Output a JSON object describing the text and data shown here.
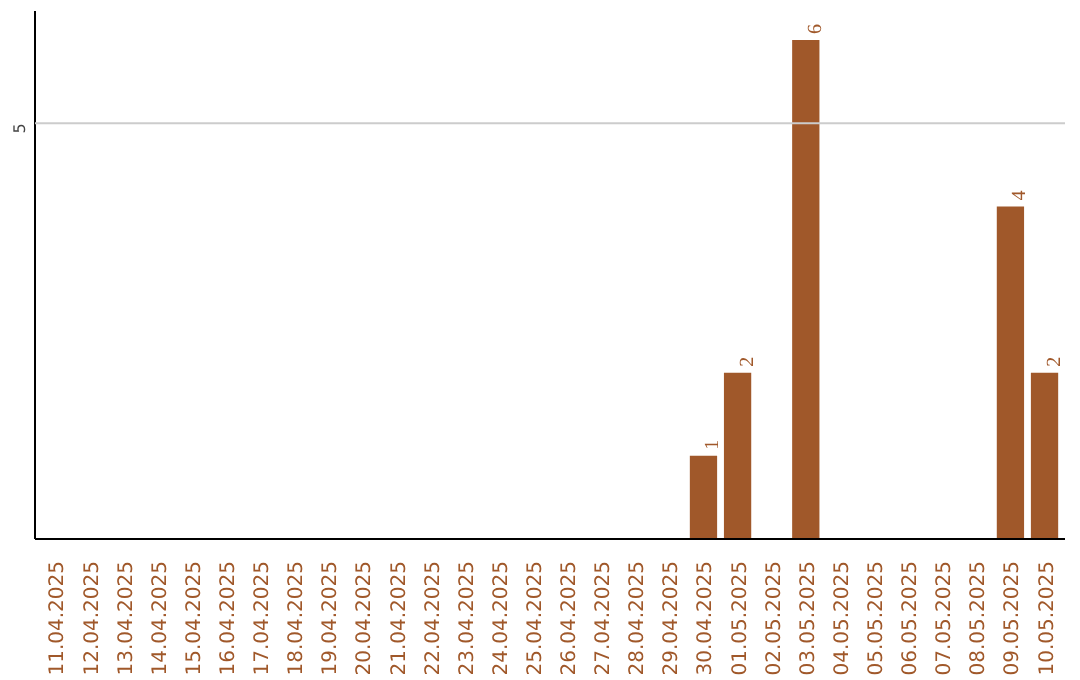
{
  "chart_data": {
    "type": "bar",
    "categories": [
      "11.04.2025",
      "12.04.2025",
      "13.04.2025",
      "14.04.2025",
      "15.04.2025",
      "16.04.2025",
      "17.04.2025",
      "18.04.2025",
      "19.04.2025",
      "20.04.2025",
      "21.04.2025",
      "22.04.2025",
      "23.04.2025",
      "24.04.2025",
      "25.04.2025",
      "26.04.2025",
      "27.04.2025",
      "28.04.2025",
      "29.04.2025",
      "30.04.2025",
      "01.05.2025",
      "02.05.2025",
      "03.05.2025",
      "04.05.2025",
      "05.05.2025",
      "06.05.2025",
      "07.05.2025",
      "08.05.2025",
      "09.05.2025",
      "10.05.2025"
    ],
    "values": [
      null,
      null,
      null,
      null,
      null,
      null,
      null,
      null,
      null,
      null,
      null,
      null,
      null,
      null,
      null,
      null,
      null,
      null,
      null,
      1,
      2,
      null,
      6,
      null,
      null,
      null,
      null,
      null,
      4,
      2
    ],
    "data_labels": true,
    "ylim": [
      0,
      6.35
    ],
    "color": "#a0582a",
    "ref_lines": [
      {
        "axis": "y",
        "value": 5,
        "label": "5",
        "color": "#cccccc"
      }
    ]
  }
}
